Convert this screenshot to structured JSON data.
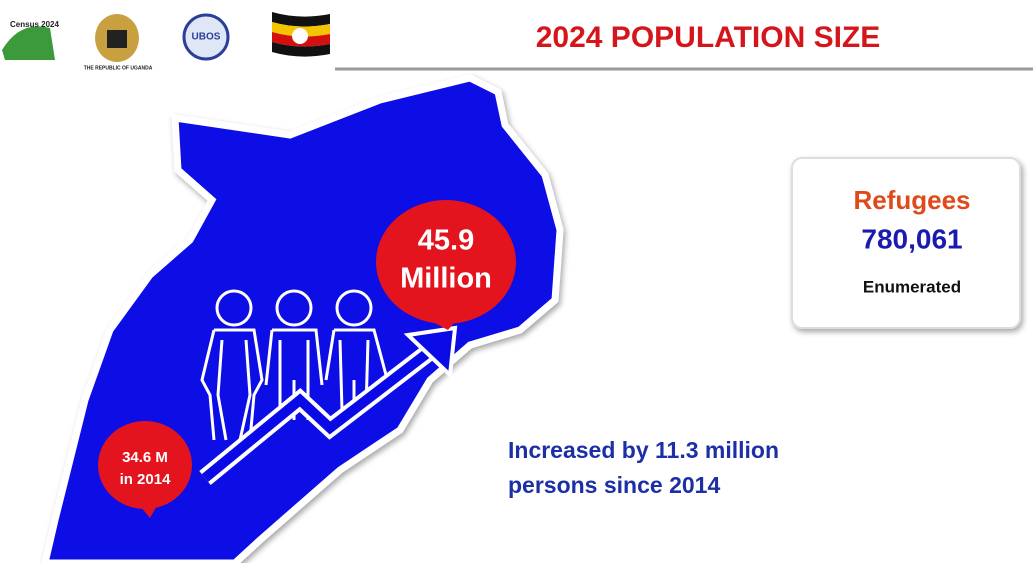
{
  "header": {
    "title": "2024 POPULATION SIZE",
    "logos": [
      "Census 2024",
      "THE REPUBLIC OF UGANDA",
      "UBOS"
    ]
  },
  "map": {
    "current": {
      "value": "45.9",
      "unit": "Million"
    },
    "previous": {
      "value": "34.6 M",
      "year": "in 2014"
    }
  },
  "refugees": {
    "label": "Refugees",
    "value": "780,061",
    "note": "Enumerated"
  },
  "growth": {
    "line1": "Increased by 11.3 million",
    "line2": "persons since 2014"
  }
}
